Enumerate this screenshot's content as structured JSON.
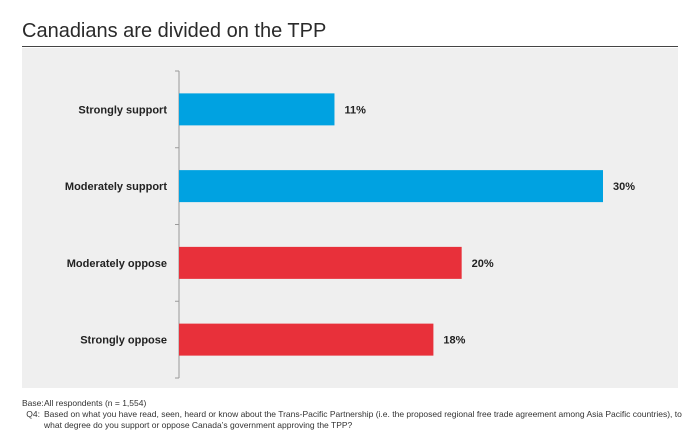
{
  "title": "Canadians are divided on the TPP",
  "chart_data": {
    "type": "bar",
    "orientation": "horizontal",
    "categories": [
      "Strongly support",
      "Moderately support",
      "Moderately oppose",
      "Strongly oppose"
    ],
    "values": [
      11,
      30,
      20,
      18
    ],
    "value_labels": [
      "11%",
      "30%",
      "20%",
      "18%"
    ],
    "bar_colors": [
      "#00a2e1",
      "#00a2e1",
      "#e8303a",
      "#e8303a"
    ],
    "xlim": [
      0,
      30
    ],
    "grid": false,
    "title": "Canadians are divided on the TPP"
  },
  "footnotes": {
    "base_label": "Base:",
    "base_text": "All respondents (n = 1,554)",
    "q_label": "Q4:",
    "q_text": "Based on what you have read, seen, heard or know about the Trans-Pacific Partnership (i.e. the proposed regional free trade agreement among Asia Pacific countries), to what degree do you support or oppose Canada’s government approving the TPP?"
  },
  "colors": {
    "support": "#00a2e1",
    "oppose": "#e8303a",
    "panel_background": "#efefef"
  }
}
